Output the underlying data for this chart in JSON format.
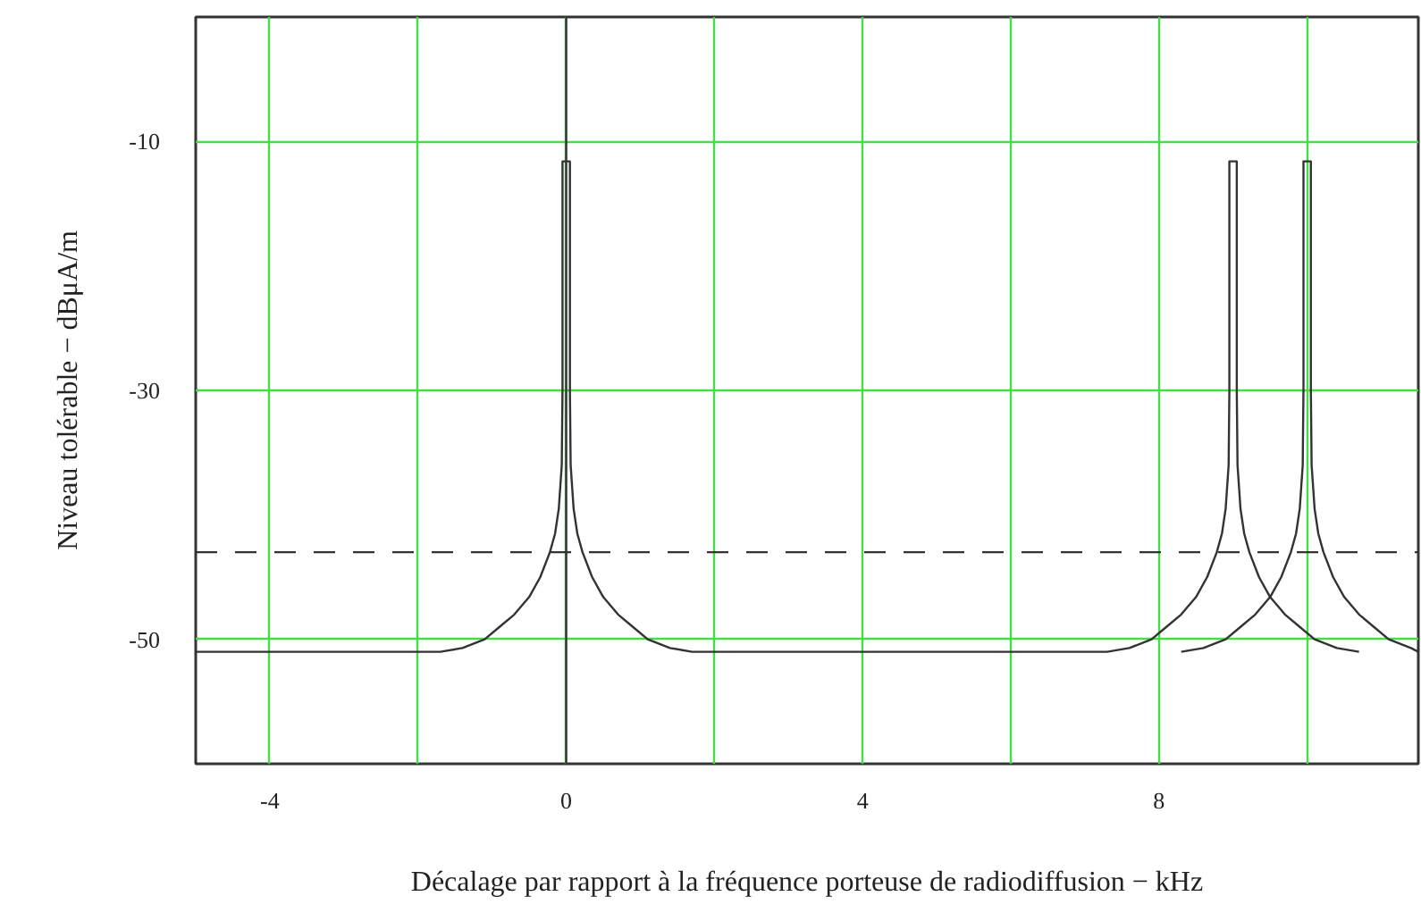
{
  "chart_data": {
    "type": "line",
    "xlabel": "Décalage par rapport à la fréquence porteuse de radiodiffusion − kHz",
    "ylabel": "Niveau tolérable − dBμA/m",
    "xlim": [
      -5,
      11.5
    ],
    "ylim": [
      -60,
      0
    ],
    "xticks": [
      -4,
      {
        "value": -2,
        "label": null
      },
      0,
      {
        "value": 2,
        "label": null
      },
      4,
      {
        "value": 6,
        "label": null
      },
      8,
      {
        "value": 10,
        "label": null
      }
    ],
    "yticks": [
      -10,
      -30,
      -50
    ],
    "grid": true,
    "marker": "none",
    "line_style": "solid",
    "series": [
      {
        "color": "#333333",
        "x": [
          -5,
          -1.7,
          -1.4,
          -1.1,
          -0.9,
          -0.7,
          -0.5,
          -0.35,
          -0.22,
          -0.15,
          -0.1,
          -0.06,
          -0.05,
          -0.05,
          0.05,
          0.05,
          0.06,
          0.1,
          0.15,
          0.22,
          0.35,
          0.5,
          0.7,
          0.9,
          1.1,
          1.4,
          1.7,
          7.3,
          7.6,
          7.9,
          8.1,
          8.3,
          8.5,
          8.65,
          8.78,
          8.85,
          8.9,
          8.94,
          8.95,
          8.95,
          9.05,
          9.05,
          9.06,
          9.1,
          9.15,
          9.22,
          9.35,
          9.5,
          9.7,
          9.9,
          10.1,
          10.4,
          10.7
        ],
        "values": [
          -51,
          -51,
          -50.7,
          -50,
          -49,
          -48,
          -46.6,
          -45,
          -43,
          -41.5,
          -39.5,
          -36,
          -30,
          -11.6,
          -11.6,
          -30,
          -36,
          -39.5,
          -41.5,
          -43,
          -45,
          -46.6,
          -48,
          -49,
          -50,
          -50.7,
          -51,
          -51,
          -50.7,
          -50,
          -49,
          -48,
          -46.6,
          -45,
          -43,
          -41.5,
          -39.5,
          -36,
          -30,
          -11.6,
          -11.6,
          -30,
          -36,
          -39.5,
          -41.5,
          -43,
          -45,
          -46.6,
          -48,
          -49,
          -50,
          -50.7,
          -51
        ]
      },
      {
        "color": "#333333",
        "x": [
          8.3,
          8.6,
          8.9,
          9.1,
          9.3,
          9.5,
          9.65,
          9.78,
          9.85,
          9.9,
          9.94,
          9.95,
          9.95,
          10.05,
          10.05,
          10.06,
          10.1,
          10.15,
          10.22,
          10.35,
          10.5,
          10.7,
          10.9,
          11.1,
          11.4,
          11.5
        ],
        "values": [
          -51,
          -50.7,
          -50,
          -49,
          -48,
          -46.6,
          -45,
          -43,
          -41.5,
          -39.5,
          -36,
          -30,
          -11.6,
          -11.6,
          -30,
          -36,
          -39.5,
          -41.5,
          -43,
          -45,
          -46.6,
          -48,
          -49,
          -50,
          -50.7,
          -51
        ]
      }
    ],
    "ref_lines": [
      {
        "axis": "x",
        "value": 0,
        "label": null,
        "color": "#333333",
        "line_style": "solid"
      },
      {
        "axis": "y",
        "value": -43,
        "label": null,
        "color": "#333333",
        "line_style": "dashed"
      }
    ]
  }
}
